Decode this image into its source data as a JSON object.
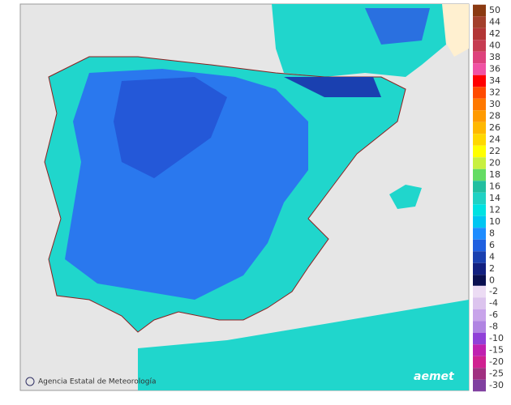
{
  "legend": {
    "items": [
      {
        "label": "50",
        "color": "#8b3a12"
      },
      {
        "label": "44",
        "color": "#a3402c"
      },
      {
        "label": "42",
        "color": "#b23636"
      },
      {
        "label": "40",
        "color": "#c63c52"
      },
      {
        "label": "38",
        "color": "#de417c"
      },
      {
        "label": "36",
        "color": "#f052a4"
      },
      {
        "label": "34",
        "color": "#ff0000"
      },
      {
        "label": "32",
        "color": "#ff4a00"
      },
      {
        "label": "30",
        "color": "#ff7800"
      },
      {
        "label": "28",
        "color": "#ff9a00"
      },
      {
        "label": "26",
        "color": "#ffb800"
      },
      {
        "label": "24",
        "color": "#ffd800"
      },
      {
        "label": "22",
        "color": "#ffff00"
      },
      {
        "label": "20",
        "color": "#c8f040"
      },
      {
        "label": "18",
        "color": "#64dc64"
      },
      {
        "label": "16",
        "color": "#22bfa0"
      },
      {
        "label": "14",
        "color": "#20d2c4"
      },
      {
        "label": "12",
        "color": "#00e2e2"
      },
      {
        "label": "10",
        "color": "#00c6f2"
      },
      {
        "label": "8",
        "color": "#1e8cff"
      },
      {
        "label": "6",
        "color": "#2060e0"
      },
      {
        "label": "4",
        "color": "#1a40b0"
      },
      {
        "label": "2",
        "color": "#122080"
      },
      {
        "label": "0",
        "color": "#0a1050"
      },
      {
        "label": "-2",
        "color": "#ecdcf4"
      },
      {
        "label": "-4",
        "color": "#dcc4ee"
      },
      {
        "label": "-6",
        "color": "#c8a4ea"
      },
      {
        "label": "-8",
        "color": "#b084e2"
      },
      {
        "label": "-10",
        "color": "#9040d8"
      },
      {
        "label": "-15",
        "color": "#c020b0"
      },
      {
        "label": "-20",
        "color": "#d02090"
      },
      {
        "label": "-25",
        "color": "#a03080"
      },
      {
        "label": "-30",
        "color": "#8040a0"
      }
    ]
  },
  "credit": "Agencia Estatal de Meteorología",
  "logo": "aemet"
}
